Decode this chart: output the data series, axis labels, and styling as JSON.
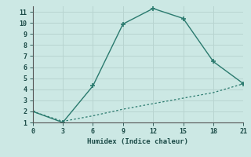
{
  "xlabel": "Humidex (Indice chaleur)",
  "background_color": "#cce8e4",
  "grid_color_major": "#b8d4d0",
  "grid_color_minor": "#d4e8e4",
  "line_color": "#2a7a6e",
  "xlim": [
    0,
    21
  ],
  "ylim": [
    1,
    11.5
  ],
  "xticks": [
    0,
    3,
    6,
    9,
    12,
    15,
    18,
    21
  ],
  "yticks": [
    1,
    2,
    3,
    4,
    5,
    6,
    7,
    8,
    9,
    10,
    11
  ],
  "series1_x": [
    0,
    3,
    6,
    9,
    12,
    15,
    18,
    21
  ],
  "series1_y": [
    2,
    1,
    4.3,
    9.9,
    11.3,
    10.4,
    6.5,
    4.5
  ],
  "series2_x": [
    0,
    3,
    6,
    9,
    12,
    15,
    18,
    21
  ],
  "series2_y": [
    2,
    1.1,
    1.6,
    2.2,
    2.7,
    3.2,
    3.7,
    4.5
  ]
}
